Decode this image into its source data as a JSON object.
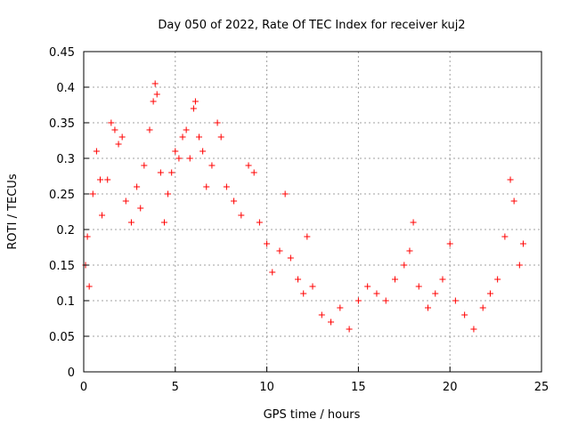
{
  "chart_data": {
    "type": "scatter",
    "title": "Day 050 of 2022, Rate Of TEC Index for receiver kuj2",
    "xlabel": "GPS time / hours",
    "ylabel": "ROTI / TECUs",
    "xlim": [
      0,
      25
    ],
    "ylim": [
      0,
      0.45
    ],
    "xticks": [
      0,
      5,
      10,
      15,
      20,
      25
    ],
    "yticks": [
      0,
      0.05,
      0.1,
      0.15,
      0.2,
      0.25,
      0.3,
      0.35,
      0.4,
      0.45
    ],
    "grid": true,
    "marker": "+",
    "color": "#ff0000",
    "series": [
      {
        "points": [
          [
            0.1,
            0.15
          ],
          [
            0.2,
            0.19
          ],
          [
            0.3,
            0.12
          ],
          [
            0.5,
            0.25
          ],
          [
            0.7,
            0.31
          ],
          [
            0.9,
            0.27
          ],
          [
            1.0,
            0.22
          ],
          [
            1.3,
            0.27
          ],
          [
            1.5,
            0.35
          ],
          [
            1.7,
            0.34
          ],
          [
            1.9,
            0.32
          ],
          [
            2.1,
            0.33
          ],
          [
            2.3,
            0.24
          ],
          [
            2.6,
            0.21
          ],
          [
            2.9,
            0.26
          ],
          [
            3.1,
            0.23
          ],
          [
            3.3,
            0.29
          ],
          [
            3.6,
            0.34
          ],
          [
            3.8,
            0.38
          ],
          [
            3.9,
            0.405
          ],
          [
            4.0,
            0.39
          ],
          [
            4.2,
            0.28
          ],
          [
            4.4,
            0.21
          ],
          [
            4.6,
            0.25
          ],
          [
            4.8,
            0.28
          ],
          [
            5.0,
            0.31
          ],
          [
            5.2,
            0.3
          ],
          [
            5.4,
            0.33
          ],
          [
            5.6,
            0.34
          ],
          [
            5.8,
            0.3
          ],
          [
            6.0,
            0.37
          ],
          [
            6.1,
            0.38
          ],
          [
            6.3,
            0.33
          ],
          [
            6.5,
            0.31
          ],
          [
            6.7,
            0.26
          ],
          [
            7.0,
            0.29
          ],
          [
            7.3,
            0.35
          ],
          [
            7.5,
            0.33
          ],
          [
            7.8,
            0.26
          ],
          [
            8.2,
            0.24
          ],
          [
            8.6,
            0.22
          ],
          [
            9.0,
            0.29
          ],
          [
            9.3,
            0.28
          ],
          [
            9.6,
            0.21
          ],
          [
            10.0,
            0.18
          ],
          [
            10.3,
            0.14
          ],
          [
            10.7,
            0.17
          ],
          [
            11.0,
            0.25
          ],
          [
            11.3,
            0.16
          ],
          [
            11.7,
            0.13
          ],
          [
            12.0,
            0.11
          ],
          [
            12.2,
            0.19
          ],
          [
            12.5,
            0.12
          ],
          [
            13.0,
            0.08
          ],
          [
            13.5,
            0.07
          ],
          [
            14.0,
            0.09
          ],
          [
            14.5,
            0.06
          ],
          [
            15.0,
            0.1
          ],
          [
            15.5,
            0.12
          ],
          [
            16.0,
            0.11
          ],
          [
            16.5,
            0.1
          ],
          [
            17.0,
            0.13
          ],
          [
            17.5,
            0.15
          ],
          [
            17.8,
            0.17
          ],
          [
            18.0,
            0.21
          ],
          [
            18.3,
            0.12
          ],
          [
            18.8,
            0.09
          ],
          [
            19.2,
            0.11
          ],
          [
            19.6,
            0.13
          ],
          [
            20.0,
            0.18
          ],
          [
            20.3,
            0.1
          ],
          [
            20.8,
            0.08
          ],
          [
            21.3,
            0.06
          ],
          [
            21.8,
            0.09
          ],
          [
            22.2,
            0.11
          ],
          [
            22.6,
            0.13
          ],
          [
            23.0,
            0.19
          ],
          [
            23.3,
            0.27
          ],
          [
            23.5,
            0.24
          ],
          [
            23.8,
            0.15
          ],
          [
            24.0,
            0.18
          ]
        ]
      }
    ]
  }
}
